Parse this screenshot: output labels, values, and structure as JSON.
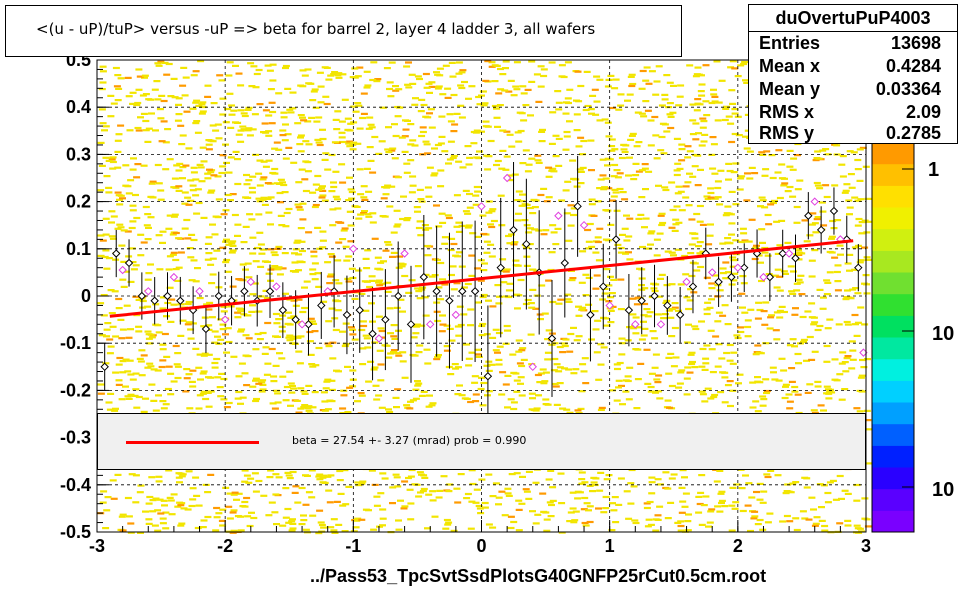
{
  "title": "<(u - uP)/tuP>  versus  -uP => beta for barrel 2, layer 4 ladder 3, all wafers",
  "stats": {
    "name": "duOvertuPuP4003",
    "rows": [
      {
        "label": "Entries",
        "value": "13698"
      },
      {
        "label": "Mean x",
        "value": "0.4284"
      },
      {
        "label": "Mean y",
        "value": "0.03364"
      },
      {
        "label": "RMS x",
        "value": "2.09"
      },
      {
        "label": "RMS y",
        "value": "0.2785"
      }
    ]
  },
  "fit_legend": "beta =   27.54 +-  3.27 (mrad) prob = 0.990",
  "footer": "../Pass53_TpcSvtSsdPlotsG40GNFP25rCut0.5cm.root",
  "colors": {
    "fit_line": "#ff0000",
    "scatter_main": "#f2e500",
    "scatter_alt": "#ff9a00",
    "profile_black": "#000000",
    "profile_magenta": "#e040e0"
  },
  "chart_data": {
    "type": "scatter",
    "xlim": [
      -3,
      3
    ],
    "ylim": [
      -0.5,
      0.5
    ],
    "x_ticks": [
      "-3",
      "-2",
      "-1",
      "0",
      "1",
      "2",
      "3"
    ],
    "y_ticks": [
      "-0.5",
      "-0.4",
      "-0.3",
      "-0.2",
      "-0.1",
      "0",
      "0.1",
      "0.2",
      "0.3",
      "0.4",
      "0.5"
    ],
    "grid": true,
    "fit": {
      "x": [
        -2.9,
        2.9
      ],
      "y": [
        -0.043,
        0.117
      ]
    },
    "profile_black": {
      "x": [
        -2.94,
        -2.85,
        -2.75,
        -2.65,
        -2.55,
        -2.45,
        -2.35,
        -2.25,
        -2.15,
        -2.05,
        -1.95,
        -1.85,
        -1.75,
        -1.65,
        -1.55,
        -1.45,
        -1.35,
        -1.25,
        -1.15,
        -1.05,
        -0.95,
        -0.85,
        -0.75,
        -0.65,
        -0.55,
        -0.45,
        -0.35,
        -0.25,
        -0.15,
        -0.05,
        0.05,
        0.15,
        0.25,
        0.35,
        0.45,
        0.55,
        0.65,
        0.75,
        0.85,
        0.95,
        1.05,
        1.15,
        1.25,
        1.35,
        1.45,
        1.55,
        1.65,
        1.75,
        1.85,
        1.95,
        2.05,
        2.15,
        2.25,
        2.35,
        2.45,
        2.55,
        2.65,
        2.75,
        2.85,
        2.94
      ],
      "y": [
        -0.15,
        0.09,
        0.07,
        0.0,
        -0.01,
        0.0,
        -0.01,
        -0.03,
        -0.07,
        0.0,
        -0.01,
        0.01,
        -0.01,
        0.01,
        -0.03,
        -0.05,
        -0.06,
        -0.02,
        0.01,
        -0.04,
        -0.03,
        -0.08,
        -0.05,
        0.0,
        -0.06,
        0.04,
        0.01,
        -0.01,
        0.01,
        0.01,
        -0.17,
        0.06,
        0.14,
        0.11,
        0.05,
        -0.09,
        0.07,
        0.19,
        -0.04,
        0.02,
        0.12,
        -0.03,
        -0.01,
        0.0,
        -0.02,
        -0.04,
        0.02,
        0.09,
        0.03,
        0.04,
        0.06,
        0.09,
        0.04,
        0.09,
        0.08,
        0.17,
        0.14,
        0.18,
        0.12,
        0.06
      ]
    },
    "profile_magenta": {
      "x": [
        -2.8,
        -2.6,
        -2.4,
        -2.2,
        -2.0,
        -1.8,
        -1.6,
        -1.4,
        -1.2,
        -1.0,
        -0.8,
        -0.6,
        -0.4,
        -0.2,
        0.0,
        0.2,
        0.4,
        0.6,
        0.8,
        1.0,
        1.2,
        1.4,
        1.6,
        1.8,
        2.0,
        2.2,
        2.4,
        2.6,
        2.8,
        2.98
      ],
      "y": [
        0.055,
        0.01,
        0.04,
        0.01,
        -0.05,
        0.03,
        0.02,
        -0.06,
        0.01,
        0.1,
        -0.09,
        0.09,
        -0.06,
        -0.04,
        0.19,
        0.25,
        -0.15,
        0.17,
        0.15,
        -0.02,
        -0.06,
        -0.06,
        0.03,
        0.05,
        0.06,
        0.04,
        0.09,
        0.2,
        0.12,
        -0.12
      ]
    }
  }
}
